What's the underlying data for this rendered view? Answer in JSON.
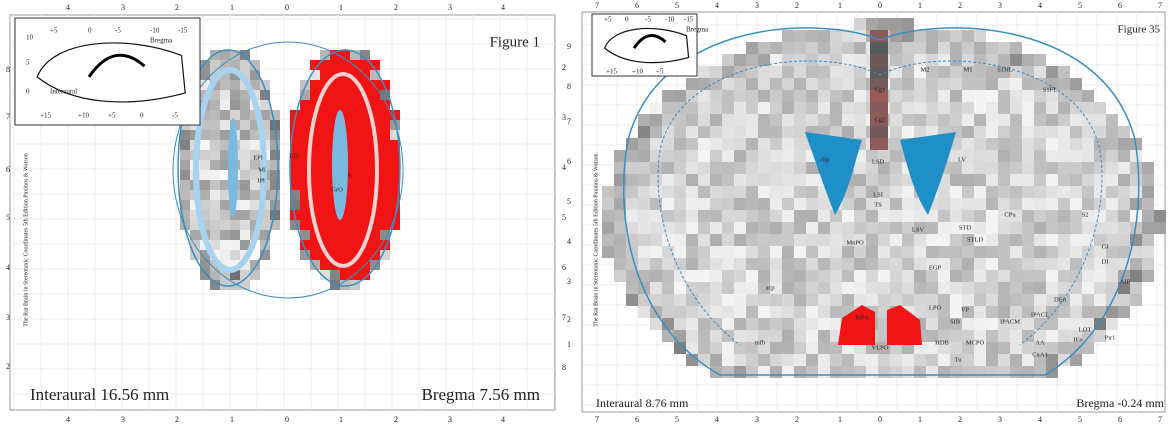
{
  "panels": [
    {
      "title": "Figure 1",
      "interaural": "Interaural 16.56 mm",
      "bregma": "Bregma 7.56 mm",
      "credit": "The Rat Brain in Stereotaxic Coordinates  5th Edition  Paxinos & Watson",
      "x_ticks": [
        "4",
        "3",
        "2",
        "1",
        "0",
        "1",
        "2",
        "3",
        "4"
      ],
      "left_ticks": [
        "8",
        "7",
        "6",
        "5",
        "4",
        "3",
        "2"
      ],
      "right_ticks": [
        "2",
        "3",
        "4",
        "5",
        "6",
        "7",
        "8"
      ],
      "inset": [
        "+5",
        "0",
        "-5",
        "-10",
        "-15",
        "Bregma",
        "10",
        "5",
        "0",
        "Interaural",
        "+15",
        "+10",
        "+5",
        "0",
        "-5"
      ],
      "labels": [
        "EPl",
        "Mi",
        "IPl",
        "LO",
        "E",
        "GrO"
      ]
    },
    {
      "title": "Figure 35",
      "interaural": "Interaural 8.76 mm",
      "bregma": "Bregma -0.24 mm",
      "credit": "The Rat Brain in Stereotaxic Coordinates  5th Edition  Paxinos & Watson",
      "x_ticks": [
        "7",
        "6",
        "5",
        "4",
        "3",
        "2",
        "1",
        "0",
        "1",
        "2",
        "3",
        "4",
        "5",
        "6",
        "7"
      ],
      "left_ticks": [
        "9",
        "8",
        "7",
        "6",
        "5",
        "4",
        "3",
        "2",
        "1"
      ],
      "inset": [
        "+5",
        "0",
        "-5",
        "-10",
        "-15",
        "Bregma",
        "+15",
        "+10",
        "+5"
      ],
      "labels": [
        "M2",
        "M1",
        "S1HL",
        "S1FL",
        "Cg1",
        "Cg2",
        "LV",
        "cbp",
        "LSD",
        "LSI",
        "TS",
        "CPu",
        "S2",
        "GI",
        "DI",
        "AIP",
        "LSV",
        "STD",
        "STLD",
        "MnPO",
        "EGP",
        "MPA",
        "VP",
        "SIB",
        "HDB",
        "MCPO",
        "Tu",
        "LPO",
        "VLPO",
        "mfb",
        "acp",
        "IPACM",
        "IPACL",
        "AA",
        "CxA1",
        "DEn",
        "LOT",
        "IEn",
        "Pir1"
      ]
    }
  ]
}
